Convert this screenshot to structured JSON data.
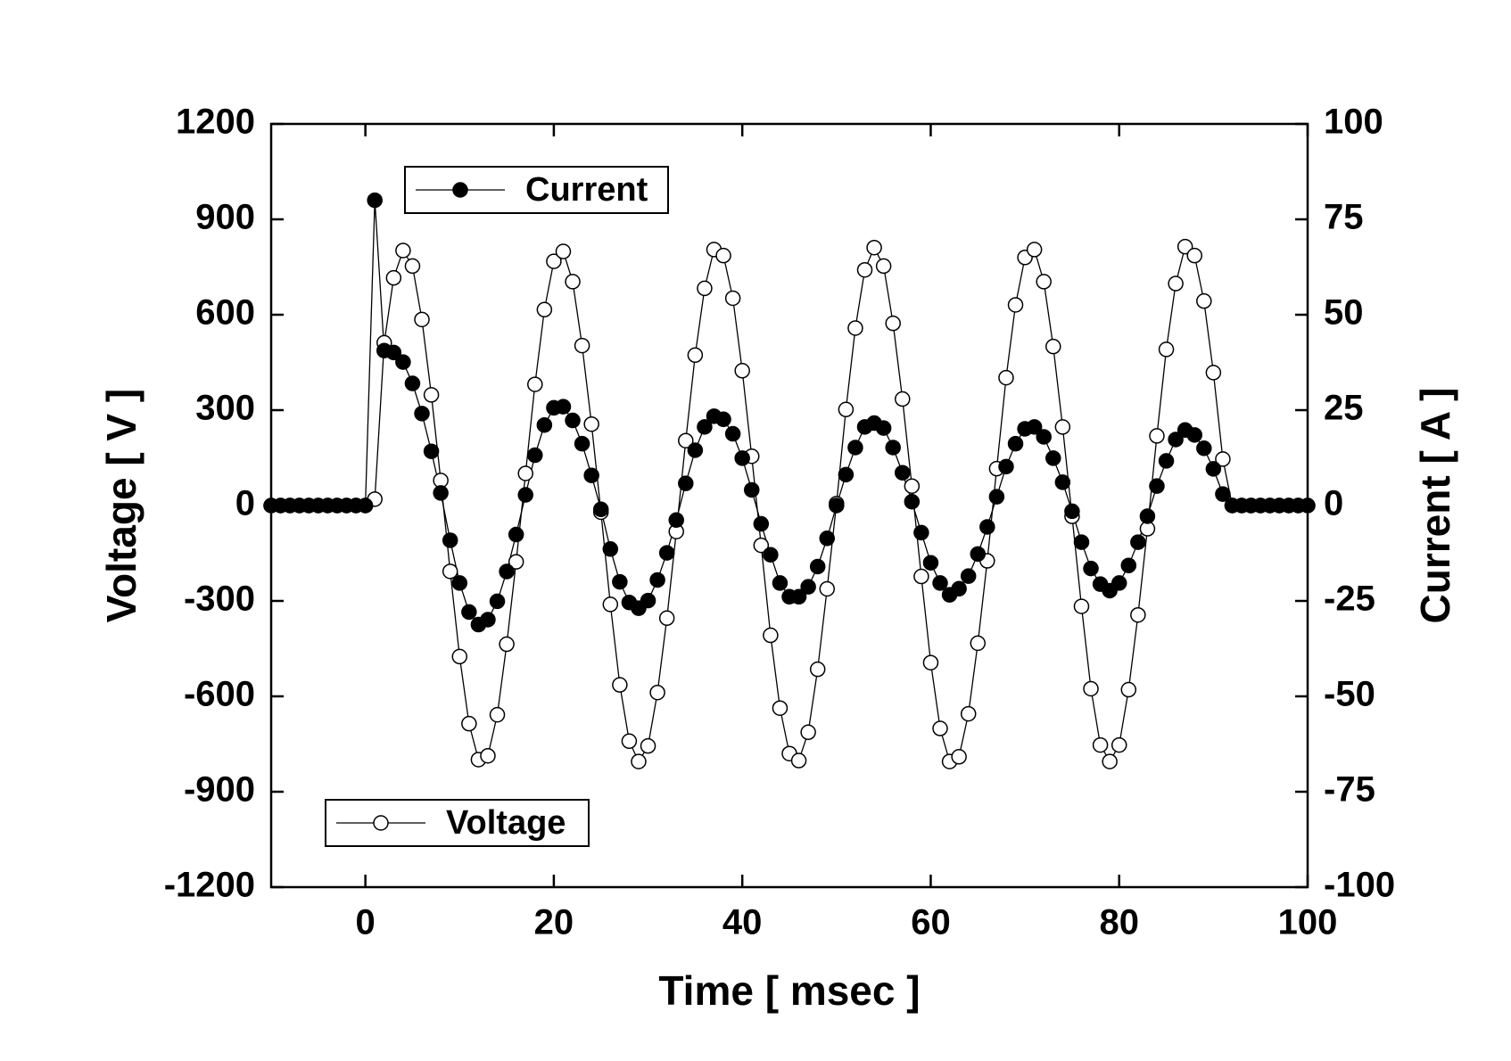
{
  "chart_data": {
    "type": "line",
    "xlabel": "Time [ msec ]",
    "ylabel": "Voltage [ V ]",
    "y2label": "Current [ A ]",
    "x": [
      -10,
      -9,
      -8,
      -7,
      -6,
      -5,
      -4,
      -3,
      -2,
      -1,
      0,
      1,
      2,
      3,
      4,
      5,
      6,
      7,
      8,
      9,
      10,
      11,
      12,
      13,
      14,
      15,
      16,
      17,
      18,
      19,
      20,
      21,
      22,
      23,
      24,
      25,
      26,
      27,
      28,
      29,
      30,
      31,
      32,
      33,
      34,
      35,
      36,
      37,
      38,
      39,
      40,
      41,
      42,
      43,
      44,
      45,
      46,
      47,
      48,
      49,
      50,
      51,
      52,
      53,
      54,
      55,
      56,
      57,
      58,
      59,
      60,
      61,
      62,
      63,
      64,
      65,
      66,
      67,
      68,
      69,
      70,
      71,
      72,
      73,
      74,
      75,
      76,
      77,
      78,
      79,
      80,
      81,
      82,
      83,
      84,
      85,
      86,
      87,
      88,
      89,
      90,
      91,
      92,
      93,
      94,
      95,
      96,
      97,
      98,
      99,
      100
    ],
    "series": [
      {
        "name": "Voltage",
        "color": "#000000",
        "marker_fill": "#ffffff",
        "axis": "y",
        "legend": "lower left",
        "values": [
          0,
          0,
          0,
          0,
          0,
          0,
          0,
          0,
          0,
          0,
          0,
          20,
          512,
          716,
          802,
          753,
          585,
          348,
          79,
          -207,
          -475,
          -686,
          -799,
          -787,
          -658,
          -436,
          -177,
          101,
          381,
          616,
          768,
          799,
          704,
          503,
          256,
          -21,
          -311,
          -564,
          -741,
          -805,
          -756,
          -588,
          -354,
          -82,
          204,
          473,
          683,
          805,
          786,
          652,
          424,
          155,
          -125,
          -408,
          -637,
          -780,
          -802,
          -713,
          -515,
          -262,
          6,
          302,
          558,
          741,
          811,
          753,
          573,
          335,
          61,
          -223,
          -494,
          -701,
          -805,
          -790,
          -655,
          -433,
          -174,
          116,
          402,
          631,
          780,
          805,
          704,
          500,
          247,
          -34,
          -317,
          -576,
          -753,
          -805,
          -753,
          -579,
          -344,
          -73,
          219,
          491,
          698,
          814,
          786,
          643,
          418,
          146,
          0,
          0,
          0,
          0,
          0,
          0,
          0,
          0,
          0
        ]
      },
      {
        "name": "Current",
        "color": "#000000",
        "marker_fill": "#000000",
        "axis": "y2",
        "legend": "upper left",
        "values": [
          0,
          0,
          0,
          0,
          0,
          0,
          0,
          0,
          0,
          0,
          0,
          80,
          40.6,
          40.1,
          37.6,
          32,
          24.1,
          14.2,
          3.3,
          -9.1,
          -20.3,
          -27.9,
          -31.2,
          -29.9,
          -25.1,
          -17.3,
          -7.6,
          2.8,
          13.2,
          21.1,
          25.6,
          25.9,
          22.3,
          16.2,
          7.9,
          -1,
          -11.4,
          -20,
          -25.4,
          -26.9,
          -24.9,
          -19.5,
          -12.4,
          -3.8,
          5.8,
          14.5,
          20.6,
          23.4,
          22.6,
          18.8,
          12.4,
          4.1,
          -4.8,
          -12.9,
          -20.3,
          -23.9,
          -23.9,
          -21.3,
          -16,
          -8.6,
          0,
          8.1,
          15.2,
          20.6,
          21.6,
          20.3,
          15.2,
          8.6,
          1,
          -7.1,
          -15,
          -20.3,
          -23.4,
          -21.8,
          -18.5,
          -12.7,
          -5.6,
          2.3,
          10.2,
          16.2,
          20.1,
          20.6,
          18,
          12.4,
          6.1,
          -1.5,
          -9.6,
          -16.5,
          -20.6,
          -22.3,
          -20.3,
          -15.7,
          -9.6,
          -2.8,
          5.1,
          11.7,
          17.3,
          19.8,
          18.5,
          15,
          9.6,
          3,
          0,
          0,
          0,
          0,
          0,
          0,
          0,
          0,
          0
        ]
      }
    ],
    "xlim": [
      -10,
      100
    ],
    "xticks": [
      0,
      20,
      40,
      60,
      80,
      100
    ],
    "ylim": [
      -1200,
      1200
    ],
    "yticks": [
      -1200,
      -900,
      -600,
      -300,
      0,
      300,
      600,
      900,
      1200
    ],
    "y2lim": [
      -100,
      100
    ],
    "y2ticks": [
      -100,
      -75,
      -50,
      -25,
      0,
      25,
      50,
      75,
      100
    ]
  }
}
